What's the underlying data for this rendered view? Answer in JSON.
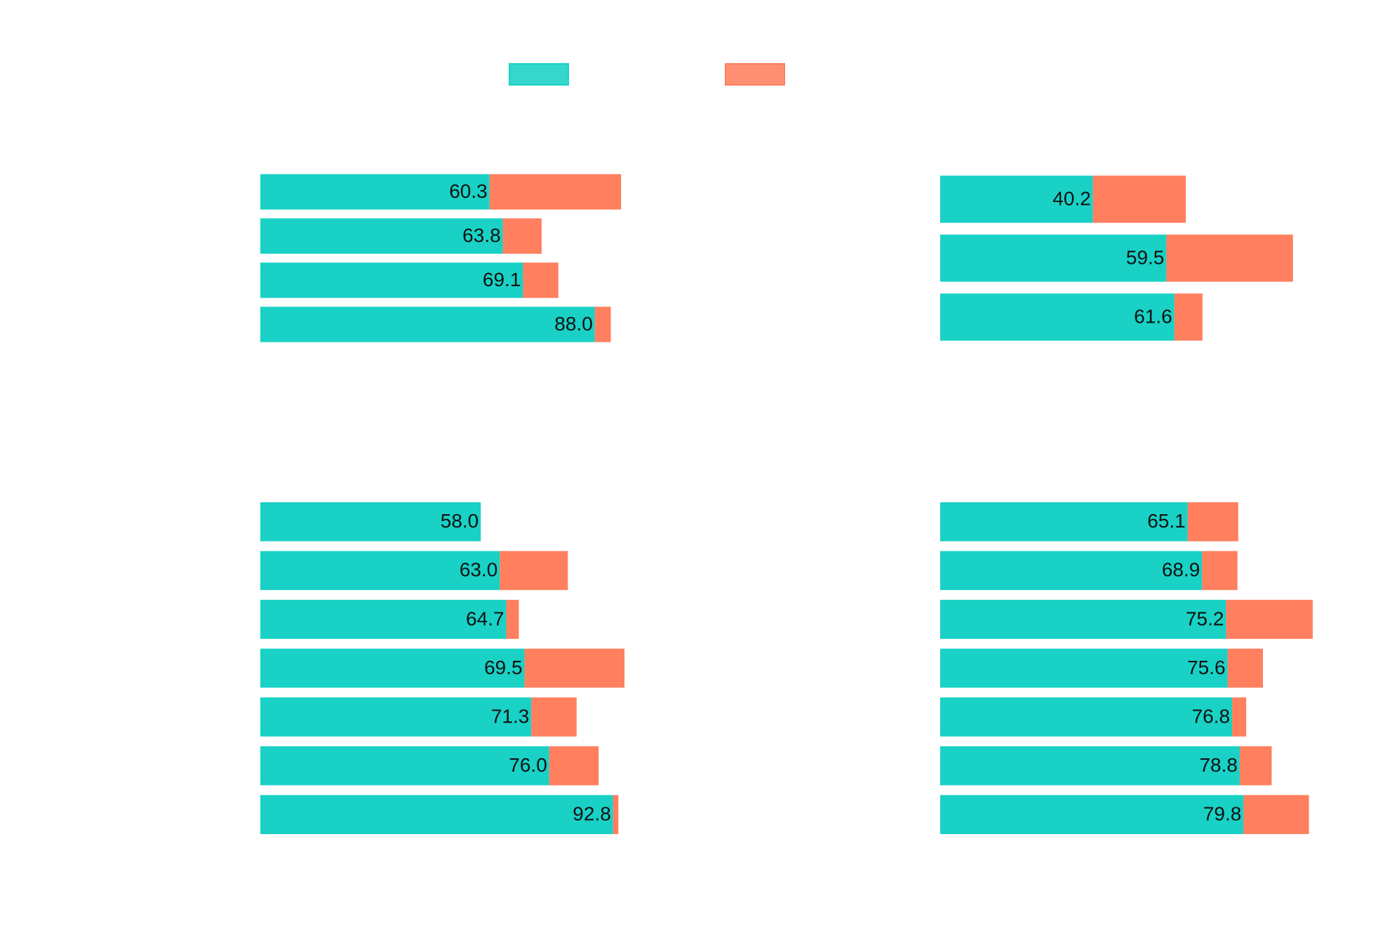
{
  "chart_data": [
    {
      "type": "bar",
      "orientation": "horizontal",
      "stacked": true,
      "categories": [
        null,
        null,
        null,
        null
      ],
      "xlim": [
        0,
        110
      ],
      "series": [
        {
          "color": "#19d1c5",
          "values": [
            60.3,
            63.8,
            69.1,
            88.0
          ],
          "value_labels": [
            "60.3",
            "63.8",
            "69.1",
            "88.0"
          ]
        },
        {
          "color": "#ff7f5e",
          "values": [
            34.6,
            10.2,
            9.3,
            4.2
          ]
        }
      ]
    },
    {
      "type": "bar",
      "orientation": "horizontal",
      "stacked": true,
      "categories": [
        null,
        null,
        null
      ],
      "xlim": [
        0,
        110
      ],
      "series": [
        {
          "color": "#19d1c5",
          "values": [
            40.2,
            59.5,
            61.6
          ],
          "value_labels": [
            "40.2",
            "59.5",
            "61.6"
          ]
        },
        {
          "color": "#ff7f5e",
          "values": [
            24.4,
            33.3,
            7.4
          ]
        }
      ]
    },
    {
      "type": "bar",
      "orientation": "horizontal",
      "stacked": true,
      "categories": [
        null,
        null,
        null,
        null,
        null,
        null,
        null
      ],
      "xlim": [
        0,
        110
      ],
      "series": [
        {
          "color": "#19d1c5",
          "values": [
            58.0,
            63.0,
            64.7,
            69.5,
            71.3,
            76.0,
            92.8
          ],
          "value_labels": [
            "58.0",
            "63.0",
            "64.7",
            "69.5",
            "71.3",
            "76.0",
            "92.8"
          ]
        },
        {
          "color": "#ff7f5e",
          "values": [
            0,
            17.9,
            3.3,
            26.3,
            11.9,
            13.0,
            1.4
          ]
        }
      ]
    },
    {
      "type": "bar",
      "orientation": "horizontal",
      "stacked": true,
      "categories": [
        null,
        null,
        null,
        null,
        null,
        null,
        null
      ],
      "xlim": [
        0,
        110
      ],
      "series": [
        {
          "color": "#19d1c5",
          "values": [
            65.1,
            68.9,
            75.2,
            75.6,
            76.8,
            78.8,
            79.8
          ],
          "value_labels": [
            "65.1",
            "68.9",
            "75.2",
            "75.6",
            "76.8",
            "78.8",
            "79.8"
          ]
        },
        {
          "color": "#ff7f5e",
          "values": [
            13.3,
            9.3,
            22.8,
            9.3,
            3.7,
            8.4,
            17.2
          ]
        }
      ]
    }
  ]
}
